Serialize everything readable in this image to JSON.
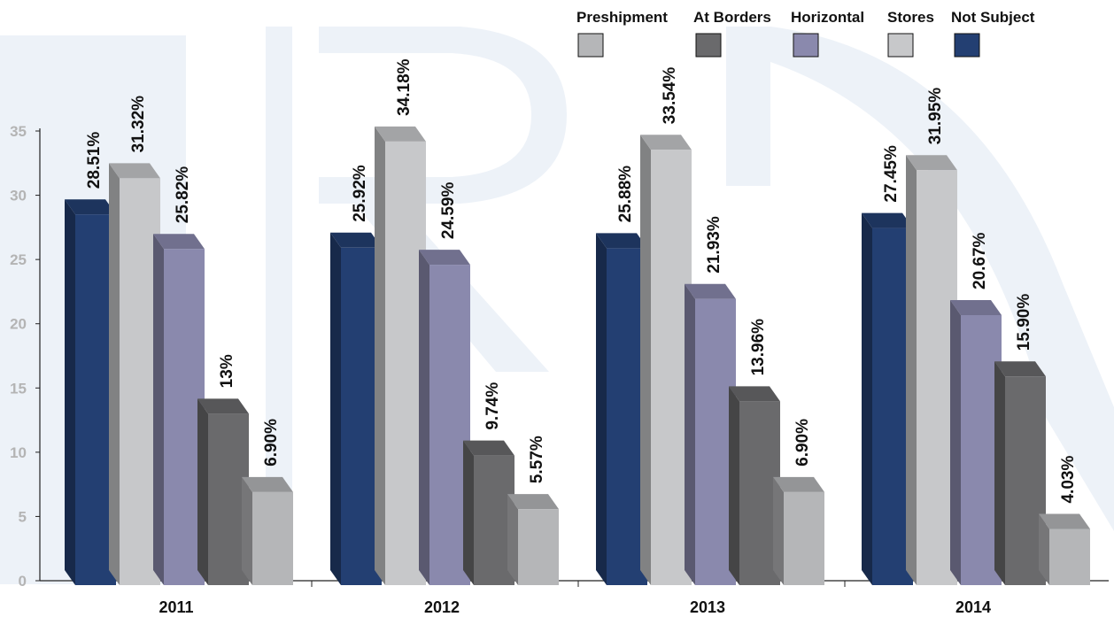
{
  "chart_data": {
    "type": "bar",
    "categories": [
      "2011",
      "2012",
      "2013",
      "2014"
    ],
    "ylim": [
      0,
      35
    ],
    "yticks": [
      "0",
      "5",
      "10",
      "15",
      "20",
      "25",
      "30",
      "35"
    ],
    "legend_position": "top-right",
    "legend_order": [
      "Preshipment",
      "At Borders",
      "Horizontal",
      "Stores",
      "Not Subject"
    ],
    "bar_order": [
      "Not Subject",
      "Stores",
      "Horizontal",
      "At Borders",
      "Preshipment"
    ],
    "series": [
      {
        "name": "Not Subject",
        "color": "#233f72",
        "values": [
          28.51,
          25.92,
          25.88,
          27.45
        ],
        "labels": [
          "28.51%",
          "25.92%",
          "25.88%",
          "27.45%"
        ]
      },
      {
        "name": "Stores",
        "color": "#c7c8ca",
        "values": [
          31.32,
          34.18,
          33.54,
          31.95
        ],
        "labels": [
          "31.32%",
          "34.18%",
          "33.54%",
          "31.95%"
        ]
      },
      {
        "name": "Horizontal",
        "color": "#8a89ad",
        "values": [
          25.82,
          24.59,
          21.93,
          20.67
        ],
        "labels": [
          "25.82%",
          "24.59%",
          "21.93%",
          "20.67%"
        ]
      },
      {
        "name": "At Borders",
        "color": "#6a6a6c",
        "values": [
          13,
          9.74,
          13.96,
          15.9
        ],
        "labels": [
          "13%",
          "9.74%",
          "13.96%",
          "15.90%"
        ]
      },
      {
        "name": "Preshipment",
        "color": "#b5b6b8",
        "values": [
          6.9,
          5.57,
          6.9,
          4.03
        ],
        "labels": [
          "6.90%",
          "5.57%",
          "6.90%",
          "4.03%"
        ]
      }
    ],
    "watermark_color": "#edf2f8",
    "axis_color": "#222222"
  }
}
